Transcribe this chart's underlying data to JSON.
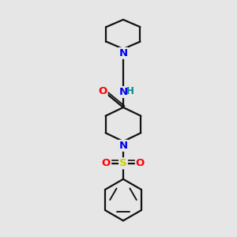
{
  "bg_color": "#e6e6e6",
  "atom_colors": {
    "N": "#0000ee",
    "O": "#ff0000",
    "S": "#cccc00",
    "C": "#000000",
    "H": "#008888"
  },
  "line_color": "#111111",
  "line_width": 1.6,
  "figsize": [
    3.0,
    3.0
  ],
  "dpi": 100
}
